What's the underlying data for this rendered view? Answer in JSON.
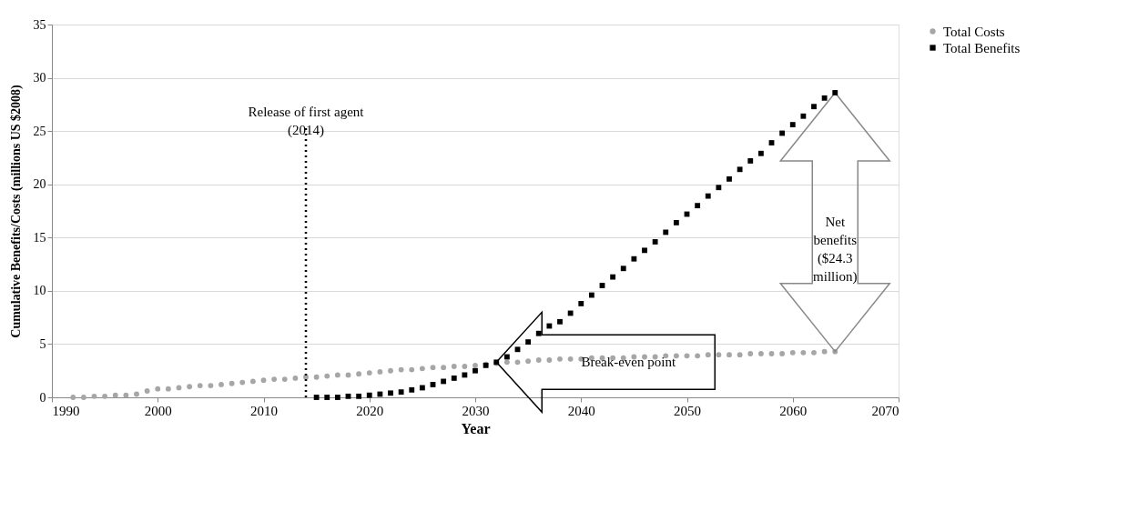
{
  "chart_data": {
    "type": "scatter",
    "xlabel": "Year",
    "ylabel": "Cumulative Benefits/Costs (millions US $2008)",
    "xlim": [
      1990,
      2070
    ],
    "xticks": [
      1990,
      2000,
      2010,
      2020,
      2030,
      2040,
      2050,
      2060,
      2070
    ],
    "ylim": [
      0,
      35
    ],
    "yticks": [
      0,
      5,
      10,
      15,
      20,
      25,
      30,
      35
    ],
    "grid": "y",
    "legend": "right",
    "series": [
      {
        "name": "Total Costs",
        "color": "#a6a6a6",
        "marker": "circle",
        "x": [
          1992,
          1993,
          1994,
          1995,
          1996,
          1997,
          1998,
          1999,
          2000,
          2001,
          2002,
          2003,
          2004,
          2005,
          2006,
          2007,
          2008,
          2009,
          2010,
          2011,
          2012,
          2013,
          2014,
          2015,
          2016,
          2017,
          2018,
          2019,
          2020,
          2021,
          2022,
          2023,
          2024,
          2025,
          2026,
          2027,
          2028,
          2029,
          2030,
          2031,
          2032,
          2033,
          2034,
          2035,
          2036,
          2037,
          2038,
          2039,
          2040,
          2041,
          2042,
          2043,
          2044,
          2045,
          2046,
          2047,
          2048,
          2049,
          2050,
          2051,
          2052,
          2053,
          2054,
          2055,
          2056,
          2057,
          2058,
          2059,
          2060,
          2061,
          2062,
          2063,
          2064
        ],
        "values": [
          0.0,
          0.0,
          0.1,
          0.1,
          0.2,
          0.2,
          0.3,
          0.6,
          0.8,
          0.8,
          0.9,
          1.0,
          1.1,
          1.1,
          1.2,
          1.3,
          1.4,
          1.5,
          1.6,
          1.7,
          1.7,
          1.8,
          1.9,
          1.9,
          2.0,
          2.1,
          2.1,
          2.2,
          2.3,
          2.4,
          2.5,
          2.6,
          2.6,
          2.7,
          2.8,
          2.8,
          2.9,
          2.9,
          3.0,
          3.1,
          3.2,
          3.3,
          3.3,
          3.4,
          3.5,
          3.5,
          3.6,
          3.6,
          3.6,
          3.7,
          3.7,
          3.7,
          3.7,
          3.8,
          3.8,
          3.8,
          3.9,
          3.9,
          3.9,
          3.9,
          4.0,
          4.0,
          4.0,
          4.0,
          4.1,
          4.1,
          4.1,
          4.1,
          4.2,
          4.2,
          4.2,
          4.3,
          4.3
        ]
      },
      {
        "name": "Total Benefits",
        "color": "#000000",
        "marker": "square",
        "x": [
          2015,
          2016,
          2017,
          2018,
          2019,
          2020,
          2021,
          2022,
          2023,
          2024,
          2025,
          2026,
          2027,
          2028,
          2029,
          2030,
          2031,
          2032,
          2033,
          2034,
          2035,
          2036,
          2037,
          2038,
          2039,
          2040,
          2041,
          2042,
          2043,
          2044,
          2045,
          2046,
          2047,
          2048,
          2049,
          2050,
          2051,
          2052,
          2053,
          2054,
          2055,
          2056,
          2057,
          2058,
          2059,
          2060,
          2061,
          2062,
          2063,
          2064
        ],
        "values": [
          0.0,
          0.0,
          0.0,
          0.1,
          0.1,
          0.2,
          0.3,
          0.4,
          0.5,
          0.7,
          0.9,
          1.2,
          1.5,
          1.8,
          2.1,
          2.5,
          3.0,
          3.3,
          3.8,
          4.5,
          5.2,
          6.0,
          6.7,
          7.1,
          7.9,
          8.8,
          9.6,
          10.5,
          11.3,
          12.1,
          13.0,
          13.8,
          14.6,
          15.5,
          16.4,
          17.2,
          18.0,
          18.9,
          19.7,
          20.5,
          21.4,
          22.2,
          22.9,
          23.9,
          24.8,
          25.6,
          26.4,
          27.3,
          28.1,
          28.6
        ]
      }
    ],
    "ref_lines": [
      {
        "axis": "x",
        "value": 2014,
        "label": "Release of first agent (2014)",
        "color": "#000000",
        "line_style": "dotted"
      }
    ],
    "annotations": [
      "Break-even point",
      "Net benefits ($24.3 million)"
    ]
  }
}
